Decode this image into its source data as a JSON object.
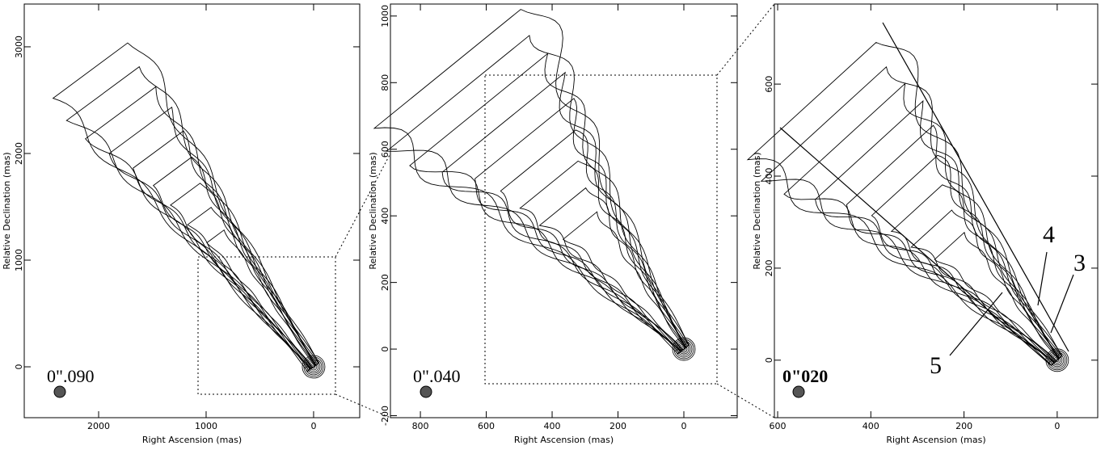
{
  "chart_data": [
    {
      "type": "contour",
      "xlabel": "Right Ascension  (mas)",
      "ylabel": "Relative Declination  (mas)",
      "xlim": [
        2692,
        -429
      ],
      "ylim": [
        -477,
        3401
      ],
      "xticks": [
        2000,
        1000,
        0
      ],
      "yticks": [
        0,
        1000,
        2000,
        3000
      ],
      "beam_label": "0\".090"
    },
    {
      "type": "contour",
      "xlabel": "Right Ascension  (mas)",
      "ylabel": "Relative Declination  (mas)",
      "xlim": [
        891,
        -162
      ],
      "ylim": [
        -206,
        1036
      ],
      "xticks": [
        800,
        600,
        400,
        200,
        0
      ],
      "yticks": [
        -200,
        0,
        200,
        400,
        600,
        800,
        1000
      ],
      "beam_label": "0\".040"
    },
    {
      "type": "contour",
      "xlabel": "Right Ascension  (mas)",
      "ylabel": "Relative Declination  (mas)",
      "xlim": [
        607,
        -87
      ],
      "ylim": [
        -125,
        774
      ],
      "xticks": [
        600,
        400,
        200,
        0
      ],
      "yticks": [
        0,
        200,
        400,
        600
      ],
      "beam_label": "0\"020",
      "annotations": [
        "5",
        "4",
        "3"
      ]
    }
  ]
}
